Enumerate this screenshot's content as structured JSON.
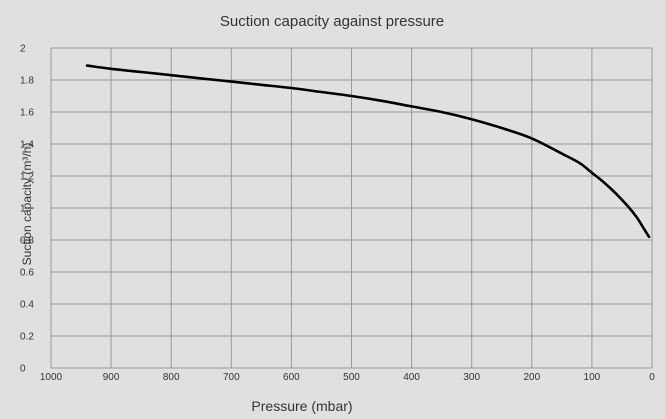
{
  "chart_data": {
    "type": "line",
    "title": "Suction capacity against pressure",
    "xlabel": "Pressure (mbar)",
    "ylabel": "Suction capacity (m³/h)",
    "xlim": [
      1000,
      0
    ],
    "ylim": [
      0,
      2
    ],
    "x_reversed": true,
    "grid": true,
    "x_ticks": [
      "1000",
      "900",
      "800",
      "700",
      "600",
      "500",
      "400",
      "300",
      "200",
      "100",
      "0"
    ],
    "y_ticks": [
      "0",
      "0.2",
      "0.4",
      "0.6",
      "0.8",
      "1",
      "1.2",
      "1.4",
      "1.6",
      "1.8",
      "2"
    ],
    "series": [
      {
        "x": [
          940,
          900,
          850,
          800,
          750,
          700,
          650,
          600,
          550,
          500,
          450,
          400,
          350,
          300,
          250,
          200,
          150,
          120,
          100,
          80,
          60,
          40,
          25,
          15,
          5
        ],
        "y": [
          1.89,
          1.87,
          1.85,
          1.83,
          1.81,
          1.79,
          1.77,
          1.75,
          1.725,
          1.7,
          1.67,
          1.635,
          1.6,
          1.555,
          1.5,
          1.435,
          1.34,
          1.28,
          1.22,
          1.16,
          1.09,
          1.01,
          0.94,
          0.88,
          0.82
        ]
      }
    ],
    "colors": {
      "background": "#e0e0e0",
      "grid": "#999999",
      "line": "#000000"
    }
  }
}
